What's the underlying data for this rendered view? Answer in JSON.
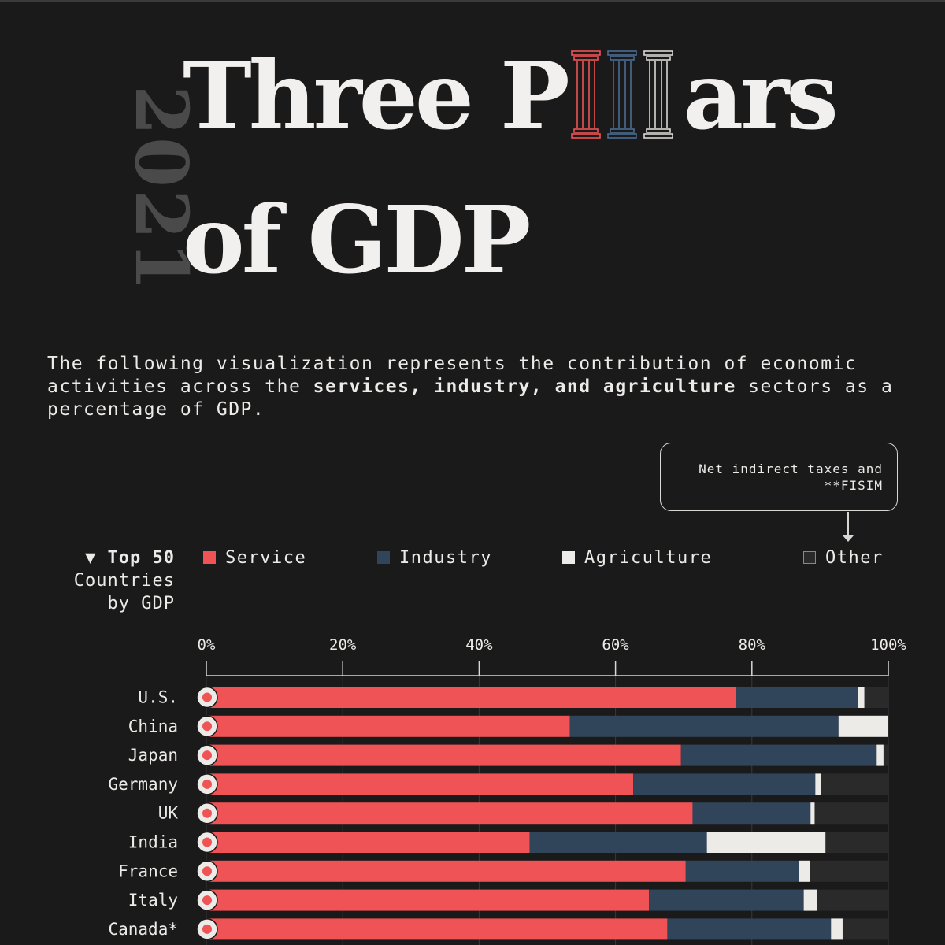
{
  "year": "2021",
  "title": {
    "line1_before": "Three P",
    "line1_after": "ars",
    "line2": "of GDP"
  },
  "intro": {
    "part1": "The following visualization represents the contribution of economic activities across the ",
    "bold": "services, industry, and agriculture",
    "part2": " sectors as a percentage of GDP."
  },
  "callout": {
    "line1": "Net indirect taxes and",
    "line2": "**FISIM"
  },
  "sort_label": {
    "line1": "▼ Top 50",
    "line2": "Countries",
    "line3": "by GDP"
  },
  "legend": [
    {
      "label": "Service",
      "color": "#ef5355"
    },
    {
      "label": "Industry",
      "color": "#30445a"
    },
    {
      "label": "Agriculture",
      "color": "#ecebe8"
    },
    {
      "label": "Other",
      "color": "#2b2a2a"
    }
  ],
  "chart_data": {
    "type": "bar",
    "orientation": "horizontal",
    "stacked": true,
    "title": "Three Pillars of GDP",
    "xlabel": "",
    "ylabel": "",
    "xlim": [
      0,
      100
    ],
    "ticks": [
      "0%",
      "20%",
      "40%",
      "60%",
      "80%",
      "100%"
    ],
    "tick_values": [
      0,
      20,
      40,
      60,
      80,
      100
    ],
    "categories": [
      "U.S.",
      "China",
      "Japan",
      "Germany",
      "UK",
      "India",
      "France",
      "Italy",
      "Canada*"
    ],
    "series": [
      {
        "name": "Service",
        "color": "#ef5355",
        "values": [
          77.6,
          53.3,
          69.6,
          62.6,
          71.3,
          47.4,
          70.3,
          64.9,
          67.6
        ]
      },
      {
        "name": "Industry",
        "color": "#30445a",
        "values": [
          18.0,
          39.4,
          28.7,
          26.7,
          17.3,
          26.0,
          16.6,
          22.7,
          24.0
        ]
      },
      {
        "name": "Agriculture",
        "color": "#ecebe8",
        "values": [
          0.9,
          7.3,
          1.0,
          0.8,
          0.6,
          17.4,
          1.6,
          1.9,
          1.7
        ]
      },
      {
        "name": "Other",
        "color": "#2b2a2a",
        "values": [
          3.5,
          0.0,
          0.7,
          9.9,
          10.8,
          9.2,
          11.5,
          10.5,
          6.7
        ]
      }
    ]
  }
}
